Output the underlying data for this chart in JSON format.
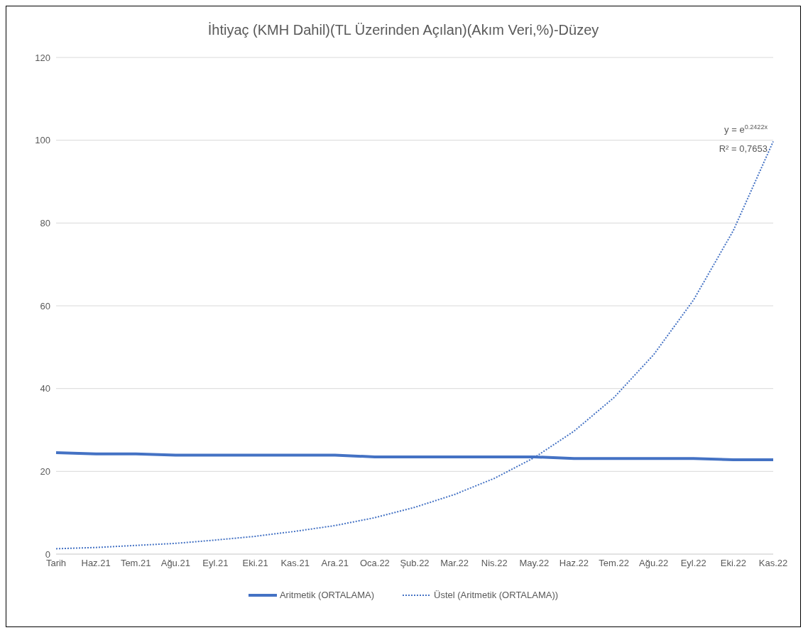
{
  "chart_data": {
    "type": "line",
    "title": "İhtiyaç (KMH Dahil)(TL Üzerinden Açılan)(Akım Veri,%)-Düzey",
    "categories": [
      "Tarih",
      "Haz.21",
      "Tem.21",
      "Ağu.21",
      "Eyl.21",
      "Eki.21",
      "Kas.21",
      "Ara.21",
      "Oca.22",
      "Şub.22",
      "Mar.22",
      "Nis.22",
      "May.22",
      "Haz.22",
      "Tem.22",
      "Ağu.22",
      "Eyl.22",
      "Eki.22",
      "Kas.22"
    ],
    "series": [
      {
        "name": "Aritmetik (ORTALAMA)",
        "color": "#4472c4",
        "line_style": "solid",
        "values": [
          24.5,
          24.2,
          24.2,
          23.9,
          23.9,
          23.9,
          23.9,
          23.9,
          23.5,
          23.5,
          23.5,
          23.5,
          23.5,
          23.1,
          23.1,
          23.1,
          23.1,
          22.8,
          22.8
        ]
      },
      {
        "name": "Üstel (Aritmetik (ORTALAMA))",
        "color": "#4472c4",
        "line_style": "dotted",
        "values": [
          1.3,
          1.6,
          2.1,
          2.6,
          3.4,
          4.3,
          5.5,
          6.9,
          8.8,
          11.3,
          14.4,
          18.3,
          23.3,
          29.7,
          37.8,
          48.2,
          61.4,
          78.2,
          99.7
        ]
      }
    ],
    "ylim": [
      0,
      120
    ],
    "yticks": [
      0,
      20,
      40,
      60,
      80,
      100,
      120
    ],
    "grid": "y",
    "legend": "bottom",
    "marker": "none",
    "annotations": [
      {
        "text": "y = e$^{0.2422x}$",
        "x": "Kas.22",
        "y": 99.7
      },
      {
        "text": "R² = 0,7653",
        "x": "Kas.22",
        "y": 99.7
      }
    ]
  }
}
